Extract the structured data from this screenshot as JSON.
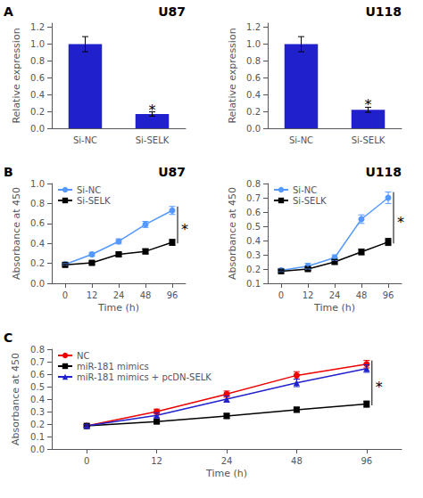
{
  "chart_data": [
    {
      "type": "bar",
      "title": "U87",
      "categories": [
        "Si-NC",
        "Si-SELK"
      ],
      "values": [
        1.0,
        0.17
      ],
      "errors": [
        0.09,
        0.025
      ],
      "color": "#2020CC",
      "ylabel": "Relative expression",
      "ylim": [
        0,
        1.25
      ],
      "yticks": [
        {
          "value": 0,
          "label": "0.0"
        },
        0.2,
        0.4,
        0.6,
        0.8,
        {
          "value": 1.0,
          "label": "1.0"
        },
        1.2
      ],
      "grid": false,
      "annotations": [
        {
          "text": "A"
        },
        {
          "text": "*",
          "x": "Si-SELK",
          "y": 0.2
        }
      ]
    },
    {
      "type": "bar",
      "title": "U118",
      "categories": [
        "Si-NC",
        "Si-SELK"
      ],
      "values": [
        1.0,
        0.22
      ],
      "errors": [
        0.09,
        0.03
      ],
      "color": "#2020CC",
      "ylabel": "Relative expression",
      "ylim": [
        0,
        1.25
      ],
      "yticks": [
        {
          "value": 0,
          "label": "0.0"
        },
        0.2,
        0.4,
        0.6,
        0.8,
        {
          "value": 1.0,
          "label": "1.0"
        },
        1.2
      ],
      "grid": false,
      "annotations": [
        {
          "text": "*",
          "x": "Si-SELK",
          "y": 0.26
        }
      ]
    },
    {
      "type": "line",
      "title": "U87",
      "xlabel": "Time (h)",
      "ylabel": "Absorbance at 450",
      "categories": [
        "0",
        "12",
        "24",
        "48",
        "96"
      ],
      "series": [
        {
          "name": "Si-NC",
          "color": "#5599FF",
          "marker": "circle",
          "values": [
            0.19,
            0.29,
            0.42,
            0.59,
            0.73
          ],
          "errors": [
            0.01,
            0.02,
            0.025,
            0.03,
            0.04
          ]
        },
        {
          "name": "Si-SELK",
          "color": "#000000",
          "marker": "square",
          "values": [
            0.185,
            0.205,
            0.29,
            0.32,
            0.41
          ],
          "errors": [
            0.01,
            0.015,
            0.02,
            0.025,
            0.03
          ]
        }
      ],
      "ylim": [
        0,
        1.0
      ],
      "yticks": [
        {
          "value": 0,
          "label": "0.0"
        },
        0.2,
        0.4,
        0.6,
        0.8,
        {
          "value": 1.0,
          "label": "1.0"
        }
      ],
      "grid": false,
      "legend": "upper left",
      "annotations": [
        {
          "text": "B"
        },
        {
          "text": "*",
          "x": "96",
          "y": 0.57,
          "bracket": [
            0.4,
            0.77
          ]
        }
      ]
    },
    {
      "type": "line",
      "title": "U118",
      "xlabel": "Time (h)",
      "ylabel": "Absorbance at 450",
      "categories": [
        "0",
        "12",
        "24",
        "48",
        "96"
      ],
      "series": [
        {
          "name": "Si-NC",
          "color": "#5599FF",
          "marker": "circle",
          "values": [
            0.19,
            0.22,
            0.28,
            0.55,
            0.7
          ],
          "errors": [
            0.01,
            0.02,
            0.02,
            0.03,
            0.04
          ]
        },
        {
          "name": "Si-SELK",
          "color": "#000000",
          "marker": "square",
          "values": [
            0.185,
            0.2,
            0.25,
            0.32,
            0.39
          ],
          "errors": [
            0.01,
            0.01,
            0.015,
            0.02,
            0.025
          ]
        }
      ],
      "ylim": [
        0.1,
        0.8
      ],
      "yticks": [
        0.1,
        0.2,
        0.3,
        0.4,
        0.5,
        0.6,
        0.7,
        0.8
      ],
      "grid": false,
      "legend": "upper left",
      "annotations": [
        {
          "text": "*",
          "x": "96",
          "y": 0.545,
          "bracket": [
            0.38,
            0.74
          ]
        }
      ]
    },
    {
      "type": "line",
      "xlabel": "Time (h)",
      "ylabel": "Absorbance at 450",
      "categories": [
        "0",
        "12",
        "24",
        "48",
        "96"
      ],
      "series": [
        {
          "name": "NC",
          "color": "#EE0000",
          "marker": "circle",
          "values": [
            0.185,
            0.3,
            0.44,
            0.59,
            0.68
          ],
          "errors": [
            0.01,
            0.02,
            0.025,
            0.03,
            0.03
          ]
        },
        {
          "name": "miR-181 mimics",
          "color": "#000000",
          "marker": "square",
          "values": [
            0.185,
            0.22,
            0.265,
            0.315,
            0.36
          ],
          "errors": [
            0.01,
            0.015,
            0.02,
            0.02,
            0.025
          ]
        },
        {
          "name": "miR-181 mimics + pcDN-SELK",
          "color": "#2020CC",
          "marker": "triangle",
          "values": [
            0.185,
            0.27,
            0.4,
            0.53,
            0.645
          ],
          "errors": [
            0.01,
            0.02,
            0.025,
            0.03,
            0.03
          ]
        }
      ],
      "ylim": [
        0,
        0.8
      ],
      "yticks": [
        {
          "value": 0,
          "label": "0.0"
        },
        0.1,
        0.2,
        0.3,
        0.4,
        0.5,
        0.6,
        0.7,
        0.8
      ],
      "grid": false,
      "legend": "upper left",
      "annotations": [
        {
          "text": "C"
        },
        {
          "text": "*",
          "x": "96",
          "y": 0.52,
          "bracket": [
            0.35,
            0.71
          ]
        }
      ]
    }
  ]
}
